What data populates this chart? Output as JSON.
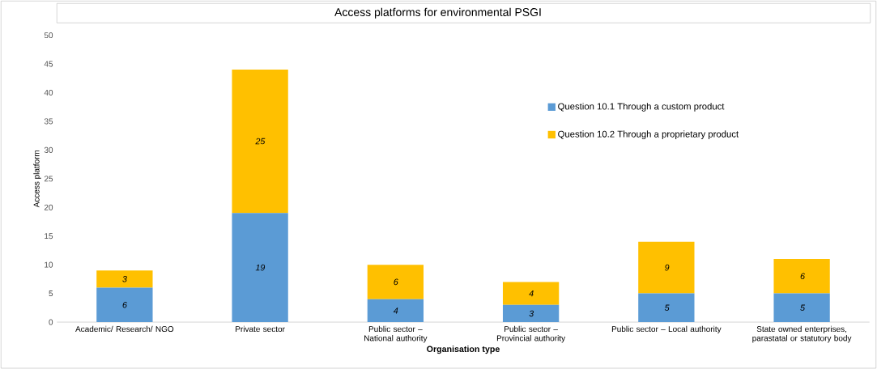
{
  "chart_data": {
    "type": "bar",
    "stacked": true,
    "title": "Access platforms for environmental PSGI",
    "xlabel": "Organisation type",
    "ylabel": "Access platform",
    "categories": [
      "Academic/ Research/ NGO",
      "Private sector",
      "Public sector – National authority",
      "Public sector – Provincial authority",
      "Public sector – Local authority",
      "State owned enterprises, parastatal or statutory body"
    ],
    "series": [
      {
        "name": "Question 10.1 Through a custom product",
        "color": "#5b9bd5",
        "values": [
          6,
          19,
          4,
          3,
          5,
          5
        ]
      },
      {
        "name": "Question 10.2 Through a proprietary product",
        "color": "#ffc000",
        "values": [
          3,
          25,
          6,
          4,
          9,
          6
        ]
      }
    ],
    "ylim": [
      0,
      50
    ],
    "yticks": [
      0,
      5,
      10,
      15,
      20,
      25,
      30,
      35,
      40,
      45,
      50
    ],
    "data_labels": true,
    "legend": "right"
  }
}
